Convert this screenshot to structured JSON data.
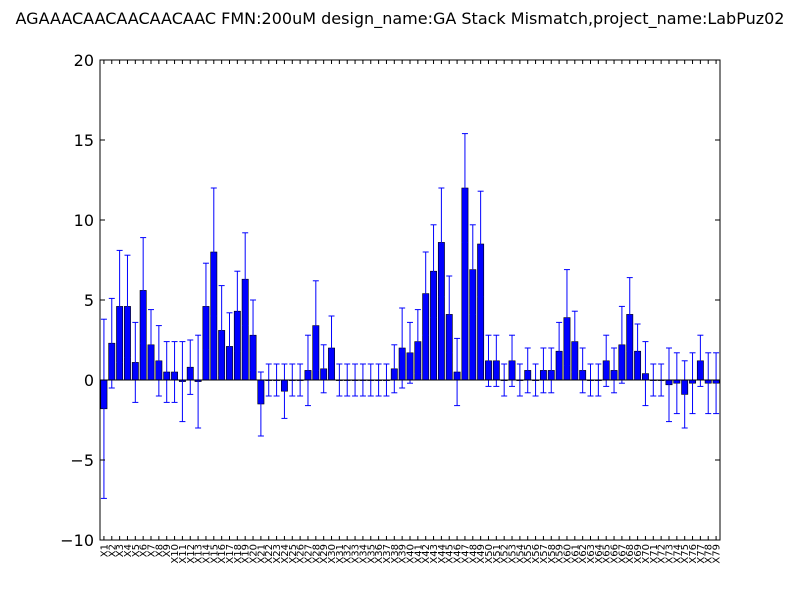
{
  "chart_data": {
    "type": "bar",
    "title": "AGAAACAACAACAACAAC  FMN:200uM  design_name:GA Stack Mismatch,project_name:LabPuz02",
    "xlabel": "",
    "ylabel": "",
    "ylim": [
      -10,
      20
    ],
    "yticks": [
      -10,
      -5,
      0,
      5,
      10,
      15,
      20
    ],
    "ytick_labels": [
      "−10",
      "−5",
      "0",
      "5",
      "10",
      "15",
      "20"
    ],
    "grid": false,
    "bar_color": "#0000ff",
    "error_color": "#0000ff",
    "categories": [
      "X1",
      "X2",
      "X3",
      "X4",
      "X5",
      "X6",
      "X7",
      "X8",
      "X9",
      "X10",
      "X11",
      "X12",
      "X13",
      "X14",
      "X15",
      "X16",
      "X17",
      "X18",
      "X19",
      "X20",
      "X21",
      "X22",
      "X23",
      "X24",
      "X25",
      "X26",
      "X27",
      "X28",
      "X29",
      "X30",
      "X31",
      "X32",
      "X33",
      "X34",
      "X35",
      "X36",
      "X37",
      "X38",
      "X39",
      "X40",
      "X41",
      "X42",
      "X43",
      "X44",
      "X45",
      "X46",
      "X47",
      "X48",
      "X49",
      "X50",
      "X51",
      "X52",
      "X53",
      "X54",
      "X55",
      "X56",
      "X57",
      "X58",
      "X59",
      "X60",
      "X61",
      "X62",
      "X63",
      "X64",
      "X65",
      "X66",
      "X67",
      "X68",
      "X69",
      "X70",
      "X71",
      "X72",
      "X73",
      "X74",
      "X75",
      "X76",
      "X77",
      "X78",
      "X79"
    ],
    "values": [
      -1.8,
      2.3,
      4.6,
      4.6,
      1.1,
      5.6,
      2.2,
      1.2,
      0.5,
      0.5,
      -0.1,
      0.8,
      -0.1,
      4.6,
      8.0,
      3.1,
      2.1,
      4.3,
      6.3,
      2.8,
      -1.5,
      0.0,
      0.0,
      -0.7,
      0.0,
      0.0,
      0.6,
      3.4,
      0.7,
      2.0,
      0.0,
      0.0,
      0.0,
      0.0,
      0.0,
      0.0,
      0.0,
      0.7,
      2.0,
      1.7,
      2.4,
      5.4,
      6.8,
      8.6,
      4.1,
      0.5,
      12.0,
      6.9,
      8.5,
      1.2,
      1.2,
      0.0,
      1.2,
      0.0,
      0.6,
      0.0,
      0.6,
      0.6,
      1.8,
      3.9,
      2.4,
      0.6,
      0.0,
      0.0,
      1.2,
      0.6,
      2.2,
      4.1,
      1.8,
      0.4,
      0.0,
      0.0,
      -0.3,
      -0.2,
      -0.9,
      -0.2,
      1.2,
      -0.2,
      -0.2
    ],
    "errors": [
      5.6,
      2.8,
      3.5,
      3.2,
      2.5,
      3.3,
      2.2,
      2.2,
      1.9,
      1.9,
      2.5,
      1.7,
      2.9,
      2.7,
      4.0,
      2.8,
      2.1,
      2.5,
      2.9,
      2.2,
      2.0,
      1.0,
      1.0,
      1.7,
      1.0,
      1.0,
      2.2,
      2.8,
      1.5,
      2.0,
      1.0,
      1.0,
      1.0,
      1.0,
      1.0,
      1.0,
      1.0,
      1.5,
      2.5,
      1.9,
      2.0,
      2.6,
      2.9,
      3.4,
      2.4,
      2.1,
      3.4,
      2.8,
      3.3,
      1.6,
      1.6,
      1.0,
      1.6,
      1.0,
      1.4,
      1.0,
      1.4,
      1.4,
      1.8,
      3.0,
      1.9,
      1.4,
      1.0,
      1.0,
      1.6,
      1.4,
      2.4,
      2.3,
      1.7,
      2.0,
      1.0,
      1.0,
      2.3,
      1.9,
      2.1,
      1.9,
      1.6,
      1.9,
      1.9
    ]
  }
}
